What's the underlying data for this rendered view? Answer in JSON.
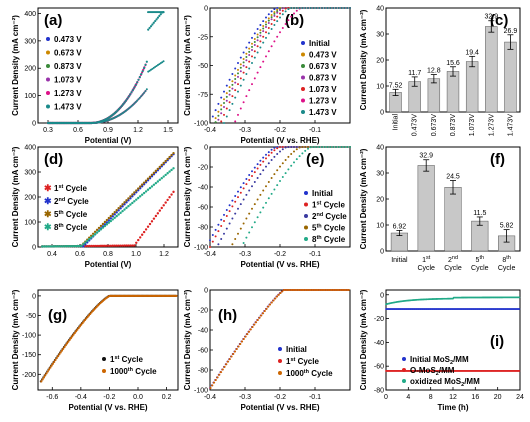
{
  "chart_data": [
    {
      "id": "a",
      "panel_label": "(a)",
      "type": "line",
      "xlabel": "Potential (V)",
      "ylabel": "Current Density (mA cm⁻²)",
      "xlim": [
        0.2,
        1.6
      ],
      "ylim": [
        0,
        420
      ],
      "xticks": [
        0.3,
        0.6,
        0.9,
        1.2,
        1.5
      ],
      "xtick_labels": [
        "0.3",
        "0.6",
        "0.9",
        "1.2",
        "1.5"
      ],
      "yticks": [
        0,
        100,
        200,
        300,
        400
      ],
      "ytick_labels": [
        "0",
        "100",
        "200",
        "300",
        "400"
      ],
      "legend_position": "upper-left",
      "series": [
        {
          "name": "0.473 V",
          "color": "#2233cc"
        },
        {
          "name": "0.673 V",
          "color": "#cc8800"
        },
        {
          "name": "0.873 V",
          "color": "#3a8a3a"
        },
        {
          "name": "1.073 V",
          "color": "#9933aa"
        },
        {
          "name": "1.273 V",
          "color": "#dd1188"
        },
        {
          "name": "1.473 V",
          "color": "#1a8a8a"
        }
      ]
    },
    {
      "id": "b",
      "panel_label": "(b)",
      "type": "scatter",
      "xlabel": "Potential (V vs. RHE)",
      "ylabel": "Current Density (mA cm⁻²)",
      "xlim": [
        -0.4,
        0.0
      ],
      "ylim": [
        -100,
        0
      ],
      "xticks": [
        -0.4,
        -0.3,
        -0.2,
        -0.1
      ],
      "xtick_labels": [
        "-0.4",
        "-0.3",
        "-0.2",
        "-0.1"
      ],
      "yticks": [
        -100,
        -75,
        -50,
        -25,
        0
      ],
      "ytick_labels": [
        "-100",
        "-75",
        "-50",
        "-25",
        "0"
      ],
      "legend_position": "right",
      "series": [
        {
          "name": "Initial",
          "color": "#2233cc",
          "onset": -0.21
        },
        {
          "name": "0.473 V",
          "color": "#cc8800",
          "onset": -0.2
        },
        {
          "name": "0.673 V",
          "color": "#3a8a3a",
          "onset": -0.195
        },
        {
          "name": "0.873 V",
          "color": "#9933aa",
          "onset": -0.19
        },
        {
          "name": "1.073 V",
          "color": "#dd2222",
          "onset": -0.18
        },
        {
          "name": "1.273 V",
          "color": "#dd1188",
          "onset": -0.14
        },
        {
          "name": "1.473 V",
          "color": "#1a8a8a",
          "onset": -0.17
        }
      ]
    },
    {
      "id": "c",
      "panel_label": "(c)",
      "type": "bar",
      "ylabel": "Current Density (mA cm⁻²)",
      "ylim": [
        0,
        40
      ],
      "yticks": [
        0,
        10,
        20,
        30,
        40
      ],
      "ytick_labels": [
        "0",
        "10",
        "20",
        "30",
        "40"
      ],
      "categories": [
        "Initial",
        "0.473V",
        "0.673V",
        "0.873V",
        "1.073V",
        "1.273V",
        "1.473V"
      ],
      "values": [
        7.52,
        11.7,
        12.8,
        15.6,
        19.4,
        32.9,
        26.9
      ],
      "value_labels": [
        "7.52",
        "11.7",
        "12.8",
        "15.6",
        "19.4",
        "32.9",
        "26.9"
      ],
      "errors": [
        1.2,
        1.8,
        1.6,
        1.8,
        2.0,
        2.2,
        2.8
      ]
    },
    {
      "id": "d",
      "panel_label": "(d)",
      "type": "scatter",
      "xlabel": "Potential (V)",
      "ylabel": "Current Density (mA cm⁻²)",
      "xlim": [
        0.3,
        1.3
      ],
      "ylim": [
        0,
        400
      ],
      "xticks": [
        0.4,
        0.6,
        0.8,
        1.0,
        1.2
      ],
      "xtick_labels": [
        "0.4",
        "0.6",
        "0.8",
        "1.0",
        "1.2"
      ],
      "yticks": [
        0,
        100,
        200,
        300,
        400
      ],
      "ytick_labels": [
        "0",
        "100",
        "200",
        "300",
        "400"
      ],
      "legend_position": "left",
      "series": [
        {
          "name": "1st Cycle",
          "base": "1",
          "sup": "st",
          "tail": " Cycle",
          "color": "#dd2222"
        },
        {
          "name": "2nd Cycle",
          "base": "2",
          "sup": "nd",
          "tail": " Cycle",
          "color": "#2233cc"
        },
        {
          "name": "5th Cycle",
          "base": "5",
          "sup": "th",
          "tail": " Cycle",
          "color": "#996600"
        },
        {
          "name": "8th Cycle",
          "base": "8",
          "sup": "th",
          "tail": " Cycle",
          "color": "#22aa88"
        }
      ]
    },
    {
      "id": "e",
      "panel_label": "(e)",
      "type": "scatter",
      "xlabel": "Potential (V vs. RHE)",
      "ylabel": "Current Density (mA cm⁻²)",
      "xlim": [
        -0.4,
        0.0
      ],
      "ylim": [
        -100,
        0
      ],
      "xticks": [
        -0.4,
        -0.3,
        -0.2,
        -0.1
      ],
      "xtick_labels": [
        "-0.4",
        "-0.3",
        "-0.2",
        "-0.1"
      ],
      "yticks": [
        -100,
        -80,
        -60,
        -40,
        -20,
        0
      ],
      "ytick_labels": [
        "-100",
        "-80",
        "-60",
        "-40",
        "-20",
        "0"
      ],
      "legend_position": "right",
      "series": [
        {
          "name": "Initial",
          "base": "Initial",
          "sup": "",
          "tail": "",
          "color": "#2233cc",
          "onset": -0.21
        },
        {
          "name": "1st Cycle",
          "base": "1",
          "sup": "st",
          "tail": " Cycle",
          "color": "#dd2222",
          "onset": -0.2
        },
        {
          "name": "2nd Cycle",
          "base": "2",
          "sup": "nd",
          "tail": " Cycle",
          "color": "#3a3aa0",
          "onset": -0.18
        },
        {
          "name": "5th Cycle",
          "base": "5",
          "sup": "th",
          "tail": " Cycle",
          "color": "#996600",
          "onset": -0.14
        },
        {
          "name": "8th Cycle",
          "base": "8",
          "sup": "th",
          "tail": " Cycle",
          "color": "#22aa88",
          "onset": -0.11
        }
      ]
    },
    {
      "id": "f",
      "panel_label": "(f)",
      "type": "bar",
      "ylabel": "Current Density (mA cm⁻²)",
      "ylim": [
        0,
        40
      ],
      "yticks": [
        0,
        10,
        20,
        30,
        40
      ],
      "ytick_labels": [
        "0",
        "10",
        "20",
        "30",
        "40"
      ],
      "categories": [
        {
          "base": "Initial",
          "sup": "",
          "line2": ""
        },
        {
          "base": "1",
          "sup": "st",
          "line2": "Cycle"
        },
        {
          "base": "2",
          "sup": "nd",
          "line2": "Cycle"
        },
        {
          "base": "5",
          "sup": "th",
          "line2": "Cycle"
        },
        {
          "base": "8",
          "sup": "th",
          "line2": "Cycle"
        }
      ],
      "values": [
        6.92,
        32.9,
        24.5,
        11.5,
        5.82
      ],
      "value_labels": [
        "6.92",
        "32.9",
        "24.5",
        "11.5",
        "5.82"
      ],
      "errors": [
        1.0,
        2.2,
        2.6,
        1.6,
        2.4
      ]
    },
    {
      "id": "g",
      "panel_label": "(g)",
      "type": "scatter",
      "xlabel": "Potential (V vs. RHE)",
      "ylabel": "Current Density (mA cm⁻²)",
      "xlim": [
        -0.7,
        0.28
      ],
      "ylim": [
        -240,
        15
      ],
      "xticks": [
        -0.6,
        -0.4,
        -0.2,
        0.0,
        0.2
      ],
      "xtick_labels": [
        "-0.6",
        "-0.4",
        "-0.2",
        "0.0",
        "0.2"
      ],
      "yticks": [
        -200,
        -150,
        -100,
        -50,
        0
      ],
      "ytick_labels": [
        "-200",
        "-150",
        "-100",
        "-50",
        "0"
      ],
      "legend_position": "lower-right",
      "series": [
        {
          "name": "1st Cycle",
          "base": "1",
          "sup": "st",
          "tail": " Cycle",
          "color": "#111111"
        },
        {
          "name": "1000th Cycle",
          "base": "1000",
          "sup": "th",
          "tail": " Cycle",
          "color": "#cc6600"
        }
      ]
    },
    {
      "id": "h",
      "panel_label": "(h)",
      "type": "scatter",
      "xlabel": "Potential (V vs. RHE)",
      "ylabel": "Current Density (mA cm⁻²)",
      "xlim": [
        -0.4,
        0.0
      ],
      "ylim": [
        -100,
        0
      ],
      "xticks": [
        -0.4,
        -0.3,
        -0.2,
        -0.1
      ],
      "xtick_labels": [
        "-0.4",
        "-0.3",
        "-0.2",
        "-0.1"
      ],
      "yticks": [
        -100,
        -80,
        -60,
        -40,
        -20,
        0
      ],
      "ytick_labels": [
        "-100",
        "-80",
        "-60",
        "-40",
        "-20",
        "0"
      ],
      "legend_position": "lower-right",
      "series": [
        {
          "name": "Initial",
          "base": "Initial",
          "sup": "",
          "tail": "",
          "color": "#2233cc"
        },
        {
          "name": "1st Cycle",
          "base": "1",
          "sup": "st",
          "tail": " Cycle",
          "color": "#dd2222"
        },
        {
          "name": "1000th Cycle",
          "base": "1000",
          "sup": "th",
          "tail": " Cycle",
          "color": "#cc6600"
        }
      ]
    },
    {
      "id": "i",
      "panel_label": "(i)",
      "type": "line",
      "xlabel": "Time (h)",
      "ylabel": "Current Density (mA cm⁻²)",
      "xlim": [
        0,
        24
      ],
      "ylim": [
        -80,
        4
      ],
      "xticks": [
        0,
        4,
        8,
        12,
        16,
        20,
        24
      ],
      "xtick_labels": [
        "0",
        "4",
        "8",
        "12",
        "16",
        "20",
        "24"
      ],
      "yticks": [
        -80,
        -60,
        -40,
        -20,
        0
      ],
      "ytick_labels": [
        "-80",
        "-60",
        "-40",
        "-20",
        "0"
      ],
      "legend_position": "lower-right",
      "series": [
        {
          "name": "Initial MoS2/MM",
          "base": "Initial MoS",
          "sub": "2",
          "tail": "/MM",
          "color": "#2233cc",
          "level": -12
        },
        {
          "name": "O-MoS2/MM",
          "base": "O-MoS",
          "sub": "2",
          "tail": "/MM",
          "color": "#dd2222",
          "level": -64
        },
        {
          "name": "oxidized MoS2/MM",
          "base": "oxidized MoS",
          "sub": "2",
          "tail": "/MM",
          "color": "#22aa88",
          "level": -3
        }
      ]
    }
  ]
}
